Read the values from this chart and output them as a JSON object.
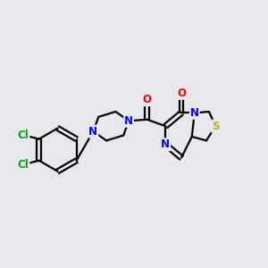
{
  "bg_color": "#e8e8ec",
  "atom_colors": {
    "C": "#000000",
    "N": "#0000ff",
    "O": "#ff0000",
    "S": "#ccaa00",
    "Cl": "#00aa00",
    "bond": "#000000"
  },
  "figsize": [
    3.0,
    3.0
  ],
  "dpi": 100,
  "xlim": [
    0,
    10
  ],
  "ylim": [
    0,
    10
  ]
}
